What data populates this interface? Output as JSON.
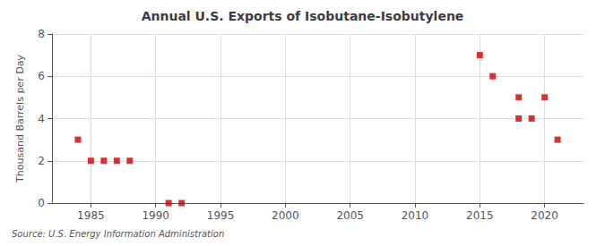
{
  "chart_data": {
    "type": "scatter",
    "title": "Annual U.S. Exports of Isobutane-Isobutylene",
    "ylabel": "Thousand Barrels per Day",
    "source": "Source: U.S. Energy Information Administration",
    "x": [
      1984,
      1985,
      1986,
      1987,
      1988,
      1991,
      1992,
      2015,
      2016,
      2018,
      2018,
      2019,
      2020,
      2021
    ],
    "values": [
      3,
      2,
      2,
      2,
      2,
      0,
      0,
      7,
      6,
      5,
      4,
      4,
      5,
      3
    ],
    "color": "#cc0000",
    "marker": "square",
    "xlim": [
      1982,
      2023
    ],
    "xticks": [
      1985,
      1990,
      1995,
      2000,
      2005,
      2010,
      2015,
      2020
    ],
    "ylim": [
      0,
      8
    ],
    "yticks": [
      0,
      2,
      4,
      6,
      8
    ],
    "grid": true
  }
}
